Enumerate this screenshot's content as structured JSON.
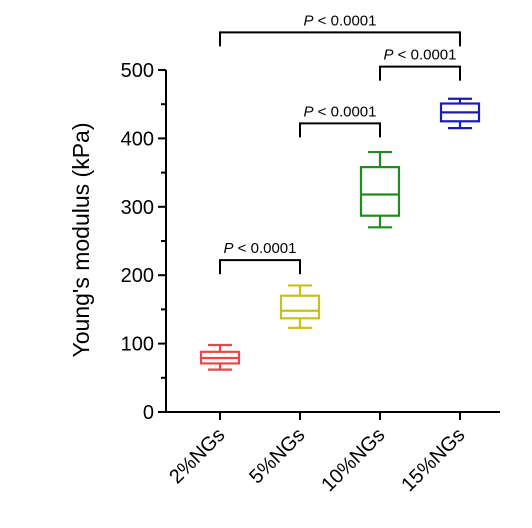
{
  "chart_data": {
    "type": "box",
    "ylabel": "Young's modulus (kPa)",
    "ylim": [
      0,
      500
    ],
    "yticks": [
      0,
      100,
      200,
      300,
      400,
      500
    ],
    "categories": [
      "2%NGs",
      "5%NGs",
      "10%NGs",
      "15%NGs"
    ],
    "boxes": [
      {
        "category": "2%NGs",
        "color": "#e8474b",
        "min": 62,
        "q1": 71,
        "median": 79,
        "q3": 88,
        "max": 98
      },
      {
        "category": "5%NGs",
        "color": "#c8c01e",
        "min": 123,
        "q1": 137,
        "median": 148,
        "q3": 170,
        "max": 185
      },
      {
        "category": "10%NGs",
        "color": "#1e8c1e",
        "min": 270,
        "q1": 287,
        "median": 318,
        "q3": 358,
        "max": 380
      },
      {
        "category": "15%NGs",
        "color": "#1a1ab4",
        "min": 415,
        "q1": 425,
        "median": 438,
        "q3": 451,
        "max": 458
      }
    ],
    "comparisons": [
      {
        "from": "2%NGs",
        "to": "5%NGs",
        "label_prefix": "P",
        "label_value": " < 0.0001",
        "y": 222
      },
      {
        "from": "5%NGs",
        "to": "10%NGs",
        "label_prefix": "P",
        "label_value": " < 0.0001",
        "y": 422
      },
      {
        "from": "10%NGs",
        "to": "15%NGs",
        "label_prefix": "P",
        "label_value": " < 0.0001",
        "y": 505
      },
      {
        "from": "2%NGs",
        "to": "15%NGs",
        "label_prefix": "P",
        "label_value": " < 0.0001",
        "y": 555
      }
    ]
  }
}
